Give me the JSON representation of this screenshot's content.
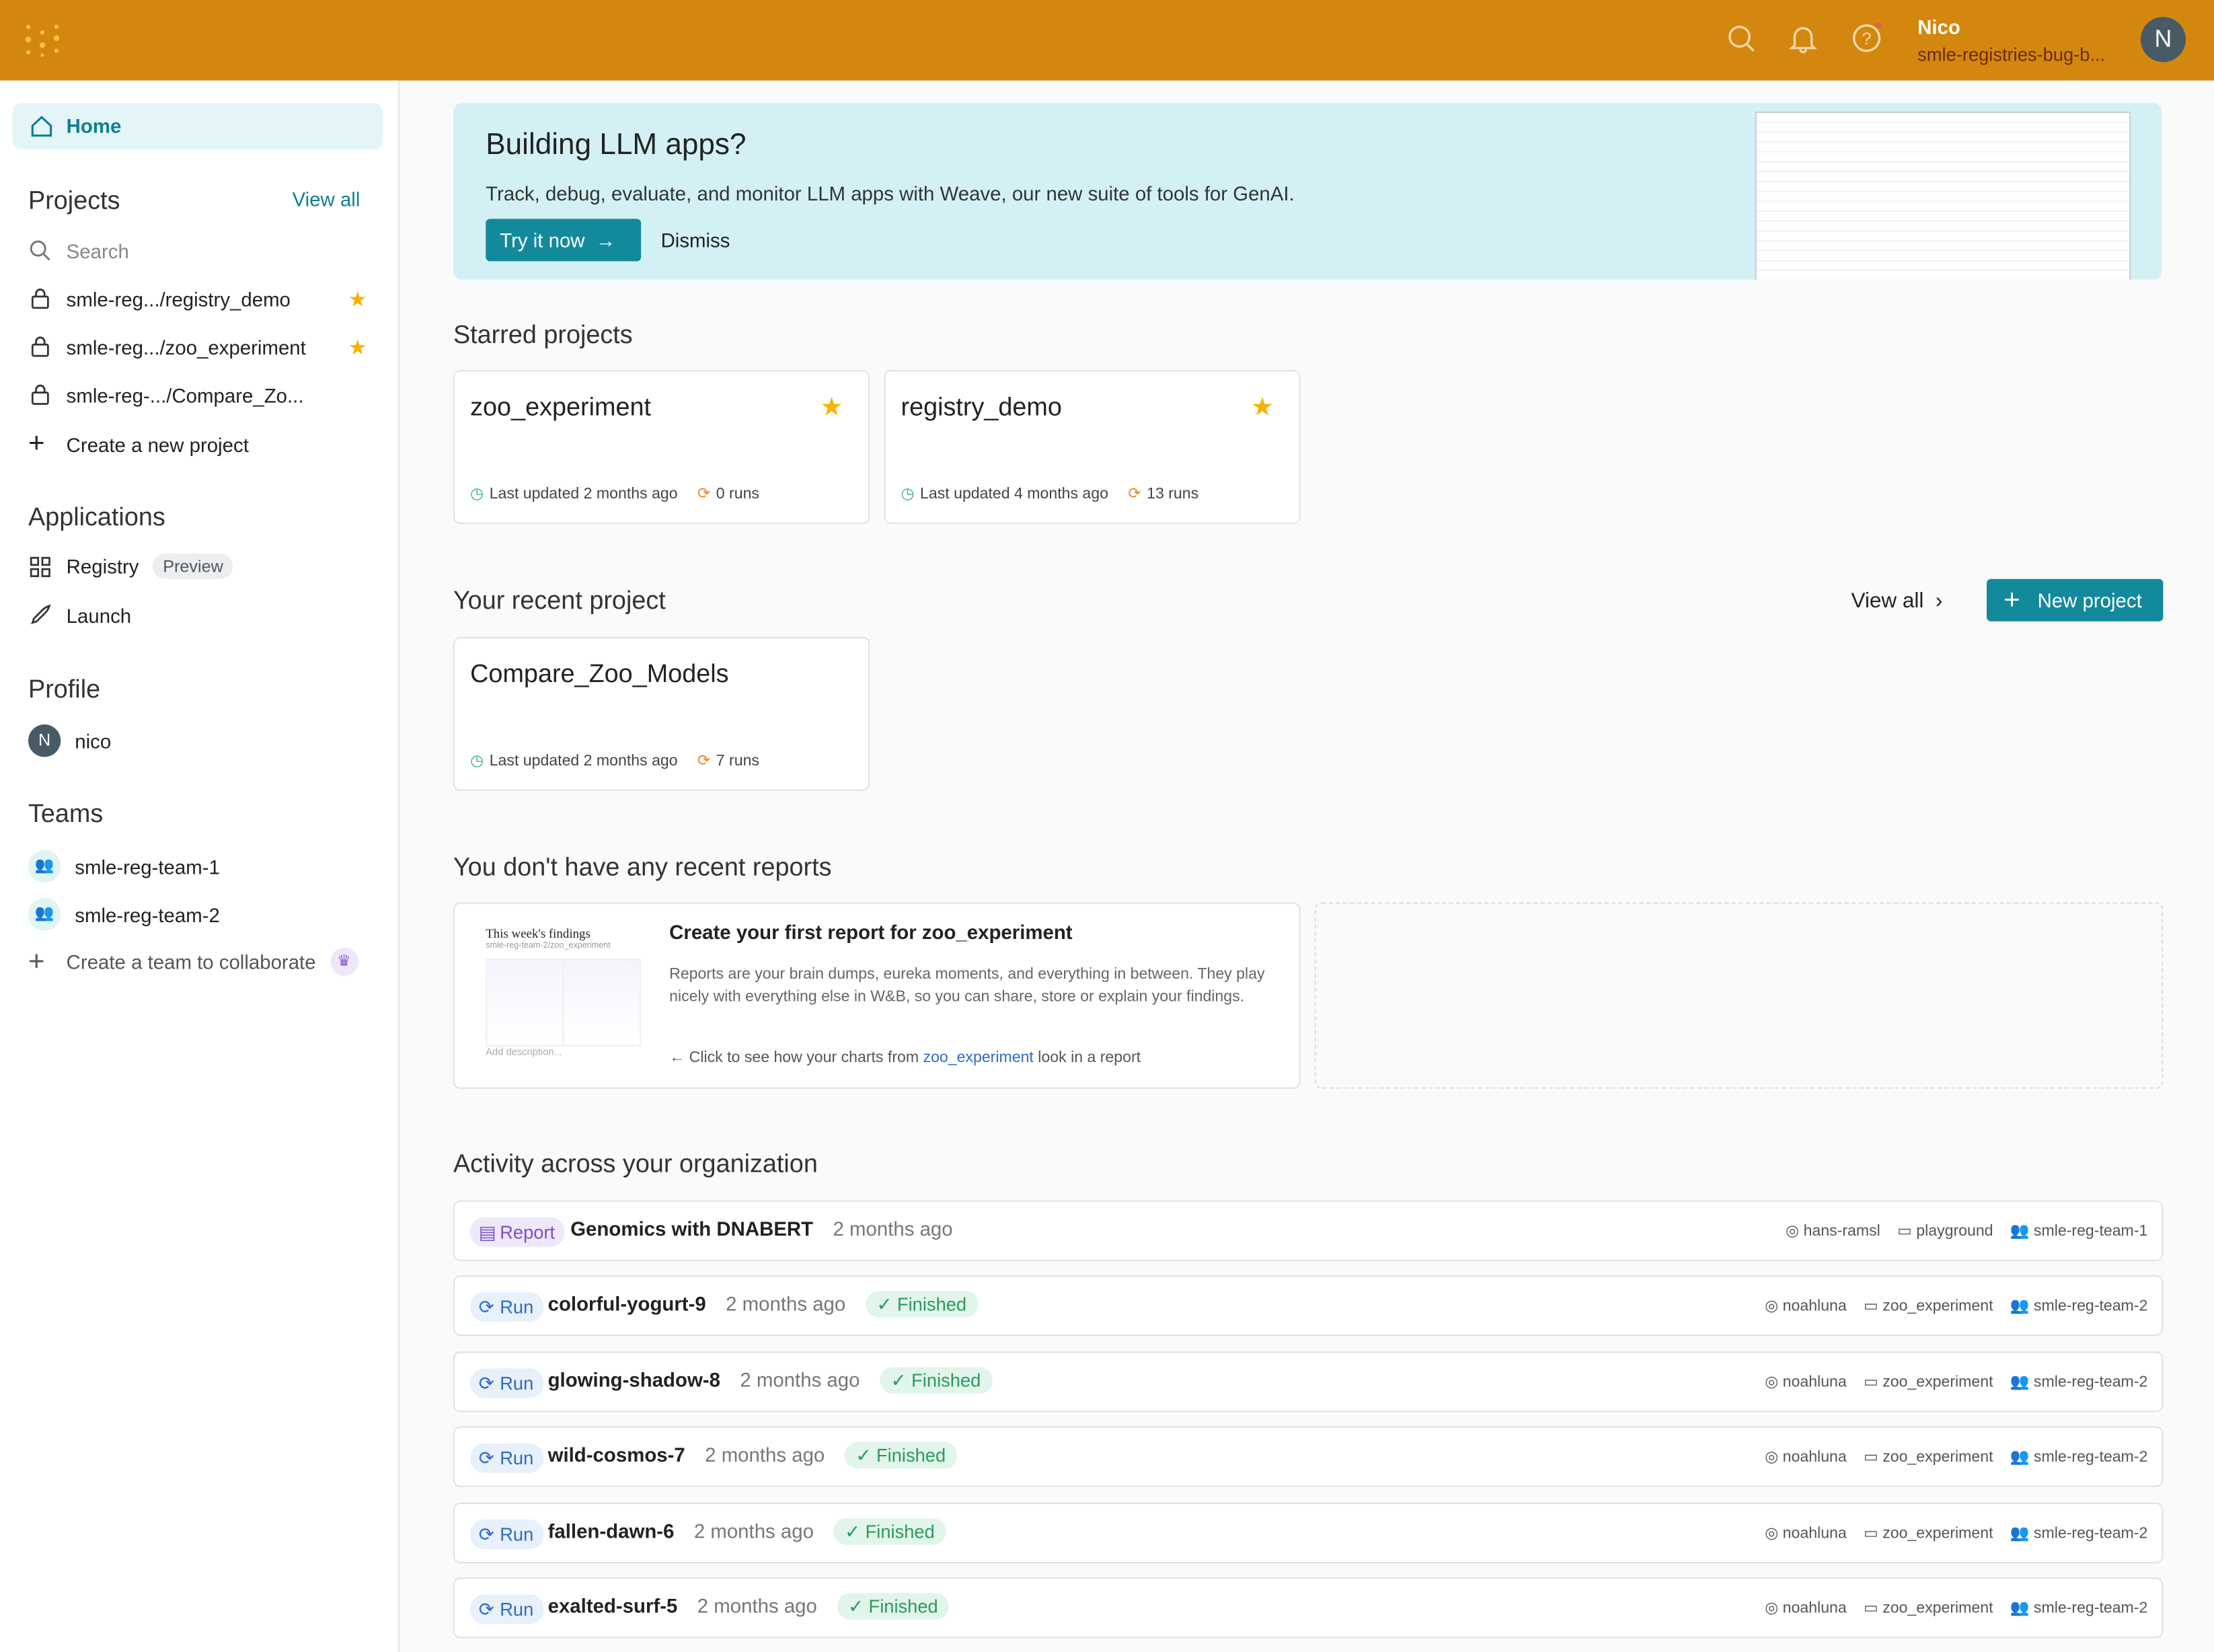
{
  "colors": {
    "header": "#d4870f",
    "accent": "#138a9c",
    "star": "#f5b400"
  },
  "header": {
    "user_name": "Nico",
    "org": "smle-registries-bug-b...",
    "avatar_initial": "N"
  },
  "sidebar": {
    "home": "Home",
    "projects_title": "Projects",
    "view_all": "View all",
    "search_placeholder": "Search",
    "projects": [
      {
        "label": "smle-reg.../registry_demo",
        "starred": true
      },
      {
        "label": "smle-reg.../zoo_experiment",
        "starred": true
      },
      {
        "label": "smle-reg-.../Compare_Zo...",
        "starred": false
      }
    ],
    "create_project": "Create a new project",
    "applications_title": "Applications",
    "registry": "Registry",
    "registry_badge": "Preview",
    "launch": "Launch",
    "profile_title": "Profile",
    "profile_initial": "N",
    "profile_name": "nico",
    "teams_title": "Teams",
    "teams": [
      "smle-reg-team-1",
      "smle-reg-team-2"
    ],
    "create_team": "Create a team to collaborate"
  },
  "banner": {
    "title": "Building LLM apps?",
    "text": "Track, debug, evaluate, and monitor LLM apps with Weave, our new suite of tools for GenAI.",
    "try": "Try it now",
    "dismiss": "Dismiss"
  },
  "starred": {
    "title": "Starred projects",
    "cards": [
      {
        "name": "zoo_experiment",
        "updated": "Last updated 2 months ago",
        "runs": "0 runs"
      },
      {
        "name": "registry_demo",
        "updated": "Last updated 4 months ago",
        "runs": "13 runs"
      }
    ]
  },
  "recent": {
    "title": "Your recent project",
    "view_all": "View all",
    "new_project": "New project",
    "card": {
      "name": "Compare_Zoo_Models",
      "updated": "Last updated 2 months ago",
      "runs": "7 runs"
    }
  },
  "reports": {
    "title": "You don't have any recent reports",
    "thumb_title": "This week's findings",
    "thumb_sub": "smle-reg-team-2/zoo_experiment",
    "thumb_desc": "Add description...",
    "card_title": "Create your first report for zoo_experiment",
    "card_text": "Reports are your brain dumps, eureka moments, and everything in between. They play nicely with everything else in W&B, so you can share, store or explain your findings.",
    "link_pre": "Click to see how your charts from ",
    "link": "zoo_experiment",
    "link_post": " look in a report"
  },
  "activity": {
    "title": "Activity across your organization",
    "rows": [
      {
        "type": "Report",
        "name": "Genomics with DNABERT",
        "ago": "2 months ago",
        "status": "",
        "user": "hans-ramsl",
        "project": "playground",
        "team": "smle-reg-team-1"
      },
      {
        "type": "Run",
        "name": "colorful-yogurt-9",
        "ago": "2 months ago",
        "status": "Finished",
        "user": "noahluna",
        "project": "zoo_experiment",
        "team": "smle-reg-team-2"
      },
      {
        "type": "Run",
        "name": "glowing-shadow-8",
        "ago": "2 months ago",
        "status": "Finished",
        "user": "noahluna",
        "project": "zoo_experiment",
        "team": "smle-reg-team-2"
      },
      {
        "type": "Run",
        "name": "wild-cosmos-7",
        "ago": "2 months ago",
        "status": "Finished",
        "user": "noahluna",
        "project": "zoo_experiment",
        "team": "smle-reg-team-2"
      },
      {
        "type": "Run",
        "name": "fallen-dawn-6",
        "ago": "2 months ago",
        "status": "Finished",
        "user": "noahluna",
        "project": "zoo_experiment",
        "team": "smle-reg-team-2"
      },
      {
        "type": "Run",
        "name": "exalted-surf-5",
        "ago": "2 months ago",
        "status": "Finished",
        "user": "noahluna",
        "project": "zoo_experiment",
        "team": "smle-reg-team-2"
      }
    ]
  }
}
